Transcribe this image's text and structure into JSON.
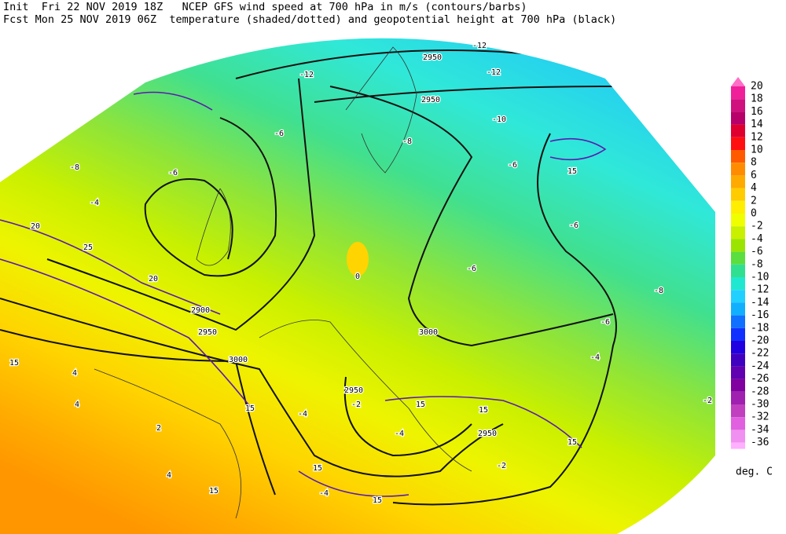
{
  "header": {
    "line1": "Init  Fri 22 NOV 2019 18Z   NCEP GFS wind speed at 700 hPa in m/s (contours/barbs)",
    "line2": "Fcst Mon 25 NOV 2019 06Z  temperature (shaded/dotted) and geopotential height at 700 hPa (black)"
  },
  "colorbar": {
    "labels": [
      "20",
      "18",
      "16",
      "14",
      "12",
      "10",
      "8",
      "6",
      "4",
      "2",
      "0",
      "-2",
      "-4",
      "-6",
      "-8",
      "-10",
      "-12",
      "-14",
      "-16",
      "-18",
      "-20",
      "-22",
      "-24",
      "-26",
      "-28",
      "-30",
      "-32",
      "-34",
      "-36"
    ],
    "colors": [
      "#ff6ec7",
      "#f0209a",
      "#d0107f",
      "#b8006a",
      "#e00030",
      "#ff1010",
      "#ff5a00",
      "#ff8c00",
      "#ffaa00",
      "#ffcc00",
      "#ffee00",
      "#f0ff00",
      "#c8f000",
      "#9be400",
      "#5ade40",
      "#30e090",
      "#20e8d0",
      "#20d0ff",
      "#10b0ff",
      "#1070ff",
      "#1030ff",
      "#2000e0",
      "#4000c0",
      "#6000b0",
      "#8000a0",
      "#a020b0",
      "#c040c0",
      "#e060e0",
      "#f090f0",
      "#ffb0ff"
    ],
    "unit": "deg. C"
  },
  "map_labels": [
    "2950",
    "2950",
    "-12",
    "-12",
    "-12",
    "-10",
    "-8",
    "-6",
    "-6",
    "-8",
    "-6",
    "15",
    "-6",
    "-6",
    "-8",
    "-6",
    "0",
    "3000",
    "2950",
    "2950",
    "2900",
    "3000",
    "2950",
    "20",
    "25",
    "15",
    "4",
    "4",
    "2",
    "4",
    "15",
    "15",
    "15",
    "15",
    "15",
    "15",
    "15",
    "-2",
    "-2",
    "-4",
    "-4",
    "-4",
    "-2",
    "-4",
    "20",
    "-4"
  ]
}
